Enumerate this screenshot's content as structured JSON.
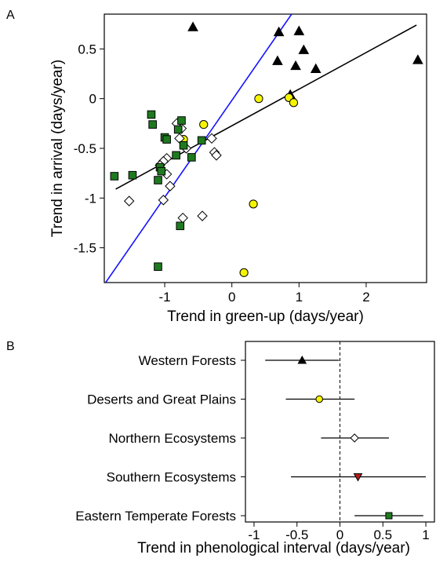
{
  "chart_data": [
    {
      "panel": "A",
      "type": "scatter",
      "xlabel": "Trend in green-up (days/year)",
      "ylabel": "Trend in arrival (days/year)",
      "xlim": [
        -1.9,
        2.9
      ],
      "ylim": [
        -1.85,
        0.85
      ],
      "xticks": [
        -1,
        0,
        1,
        2
      ],
      "xtick_labels": [
        "-1",
        "0",
        "1",
        "2"
      ],
      "yticks": [
        0.5,
        0,
        -0.5,
        -1,
        -1.5
      ],
      "ytick_labels": [
        "0.5",
        "0",
        "-0.5",
        "-1",
        "-1.5"
      ],
      "series": [
        {
          "marker": "triangle",
          "fill": "#000000",
          "points": [
            [
              -0.58,
              0.72
            ],
            [
              0.7,
              0.67
            ],
            [
              1.0,
              0.68
            ],
            [
              0.68,
              0.38
            ],
            [
              1.07,
              0.49
            ],
            [
              0.95,
              0.33
            ],
            [
              1.25,
              0.3
            ],
            [
              0.87,
              0.04
            ],
            [
              2.77,
              0.39
            ]
          ]
        },
        {
          "marker": "circle",
          "fill": "#f5f500",
          "points": [
            [
              0.4,
              0.0
            ],
            [
              0.85,
              0.01
            ],
            [
              0.92,
              -0.04
            ],
            [
              -0.42,
              -0.26
            ],
            [
              -0.72,
              -0.41
            ],
            [
              0.32,
              -1.06
            ],
            [
              0.18,
              -1.75
            ]
          ]
        },
        {
          "marker": "diamond",
          "fill": "#ffffff",
          "points": [
            [
              -0.82,
              -0.25
            ],
            [
              -0.75,
              -0.3
            ],
            [
              -0.78,
              -0.4
            ],
            [
              -0.68,
              -0.5
            ],
            [
              -0.3,
              -0.4
            ],
            [
              -0.26,
              -0.54
            ],
            [
              -0.23,
              -0.57
            ],
            [
              -0.97,
              -0.6
            ],
            [
              -1.02,
              -0.63
            ],
            [
              -1.07,
              -0.67
            ],
            [
              -0.97,
              -0.76
            ],
            [
              -0.92,
              -0.88
            ],
            [
              -1.02,
              -1.02
            ],
            [
              -1.53,
              -1.03
            ],
            [
              -0.73,
              -1.2
            ],
            [
              -0.44,
              -1.18
            ]
          ]
        },
        {
          "marker": "square",
          "fill": "#1f7a1f",
          "points": [
            [
              -1.2,
              -0.16
            ],
            [
              -1.18,
              -0.26
            ],
            [
              -0.75,
              -0.22
            ],
            [
              -0.8,
              -0.31
            ],
            [
              -1.0,
              -0.39
            ],
            [
              -0.97,
              -0.41
            ],
            [
              -0.72,
              -0.47
            ],
            [
              -0.45,
              -0.42
            ],
            [
              -0.83,
              -0.57
            ],
            [
              -0.6,
              -0.59
            ],
            [
              -1.07,
              -0.69
            ],
            [
              -1.05,
              -0.73
            ],
            [
              -1.1,
              -0.82
            ],
            [
              -1.75,
              -0.78
            ],
            [
              -1.48,
              -0.77
            ],
            [
              -0.77,
              -1.28
            ],
            [
              -1.1,
              -1.69
            ]
          ]
        }
      ],
      "lines": [
        {
          "color": "#000000",
          "from": [
            -1.73,
            -0.91
          ],
          "to": [
            2.75,
            0.74
          ]
        },
        {
          "color": "#1414ff",
          "from": [
            -1.88,
            -1.85
          ],
          "to": [
            0.89,
            0.85
          ]
        }
      ]
    },
    {
      "panel": "B",
      "type": "forest",
      "xlabel": "Trend in phenological interval (days/year)",
      "xlim": [
        -1.1,
        1.1
      ],
      "xticks": [
        -1,
        -0.5,
        0,
        0.5,
        1
      ],
      "xtick_labels": [
        "-1",
        "-0.5",
        "0",
        "0.5",
        "1"
      ],
      "reference_line": 0,
      "categories": [
        "Western Forests",
        "Deserts and Great Plains",
        "Northern Ecosystems",
        "Southern Ecosystems",
        "Eastern Temperate Forests"
      ],
      "points": [
        {
          "category": "Western Forests",
          "value": -0.44,
          "lower": -0.87,
          "upper": -0.01,
          "marker": "triangle",
          "fill": "#000000"
        },
        {
          "category": "Deserts and Great Plains",
          "value": -0.24,
          "lower": -0.63,
          "upper": 0.17,
          "marker": "circle",
          "fill": "#f5f500"
        },
        {
          "category": "Northern Ecosystems",
          "value": 0.17,
          "lower": -0.22,
          "upper": 0.57,
          "marker": "diamond",
          "fill": "#ffffff"
        },
        {
          "category": "Southern Ecosystems",
          "value": 0.21,
          "lower": -0.57,
          "upper": 1.0,
          "marker": "triangle-down",
          "fill": "#b51c1c"
        },
        {
          "category": "Eastern Temperate Forests",
          "value": 0.57,
          "lower": 0.17,
          "upper": 0.97,
          "marker": "square",
          "fill": "#1f7a1f"
        }
      ]
    }
  ]
}
